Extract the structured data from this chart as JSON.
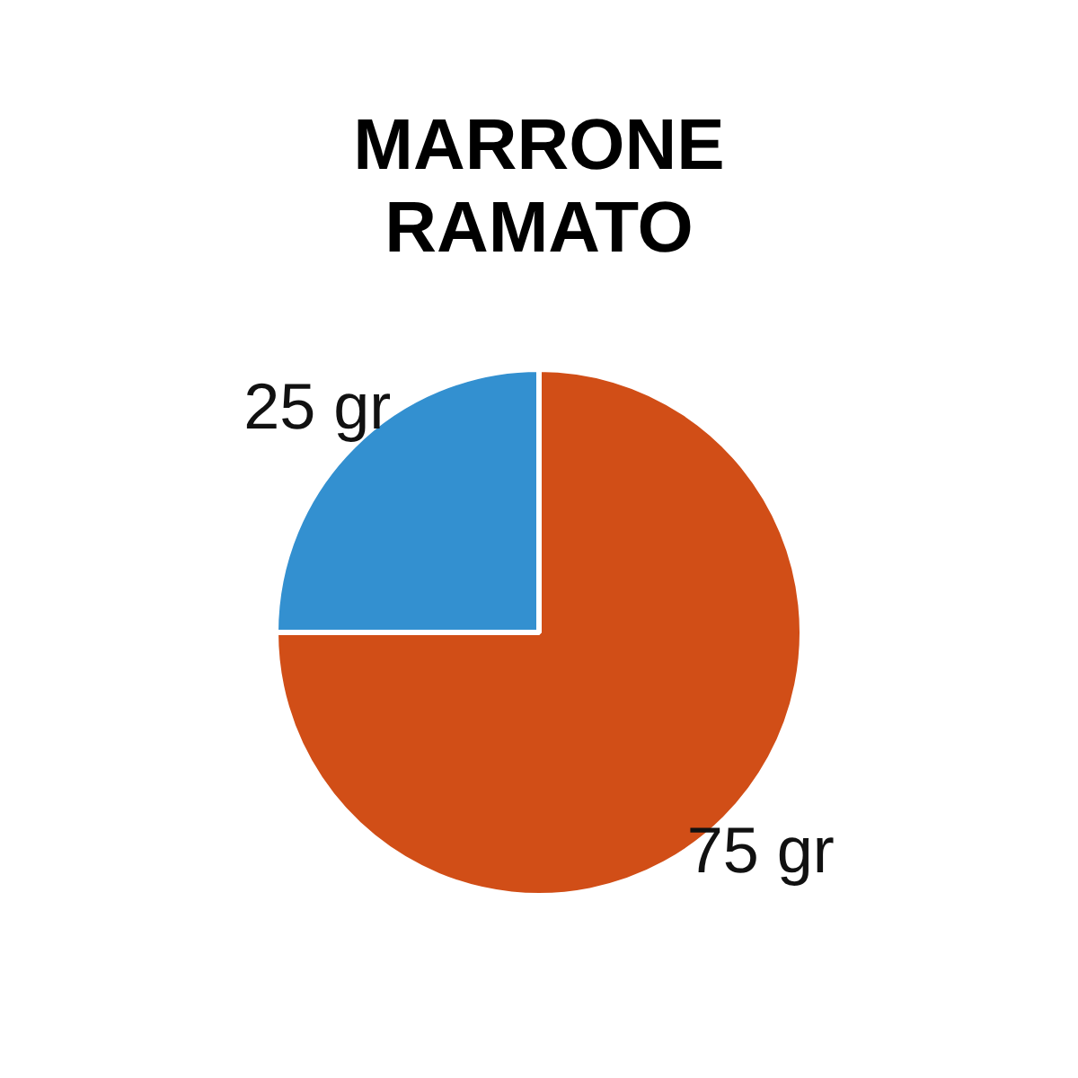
{
  "chart_data": {
    "type": "pie",
    "title": "MARRONE RAMATO",
    "categories": [
      null,
      null
    ],
    "values": [
      75,
      25
    ],
    "colors": [
      "#d14e17",
      "#3390d0"
    ],
    "value_labels": [
      "75 gr",
      "25 gr"
    ],
    "legend": false
  }
}
